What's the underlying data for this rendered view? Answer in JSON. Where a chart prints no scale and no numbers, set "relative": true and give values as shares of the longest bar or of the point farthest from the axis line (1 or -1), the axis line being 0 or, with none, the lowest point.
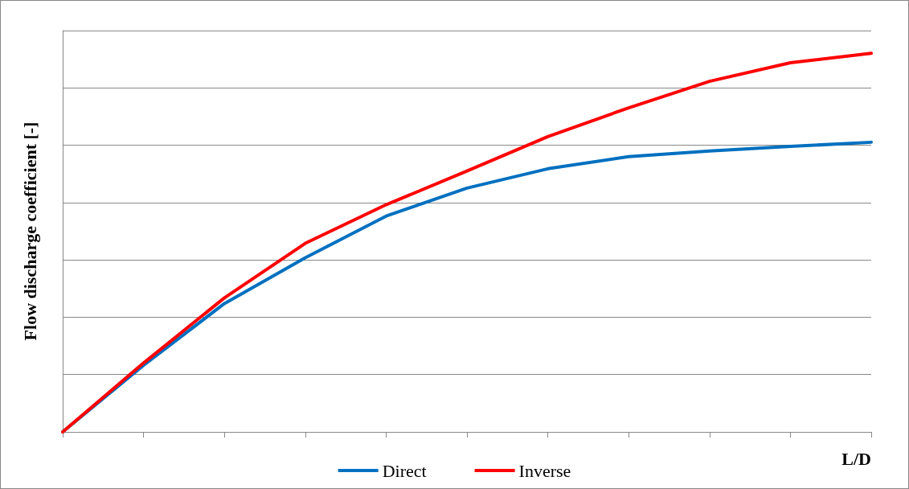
{
  "chart_data": {
    "type": "line",
    "relative": true,
    "xlabel": "L/D",
    "ylabel": "Flow discharge coefficient [-]",
    "categories": [
      null,
      null,
      null,
      null,
      null,
      null,
      null,
      null,
      null,
      null,
      null
    ],
    "series": [
      {
        "name": "Direct",
        "color": "#0070c0",
        "values": [
          0,
          0.176,
          0.339,
          0.46,
          0.57,
          0.644,
          0.695,
          0.727,
          0.742,
          0.754,
          0.765
        ]
      },
      {
        "name": "Inverse",
        "color": "#ff0000",
        "values": [
          0,
          0.182,
          0.354,
          0.498,
          0.6,
          0.689,
          0.78,
          0.856,
          0.926,
          0.975,
          1
        ]
      }
    ],
    "grid": "y",
    "legend": "bottom",
    "marker": "none",
    "line_style": "solid"
  }
}
